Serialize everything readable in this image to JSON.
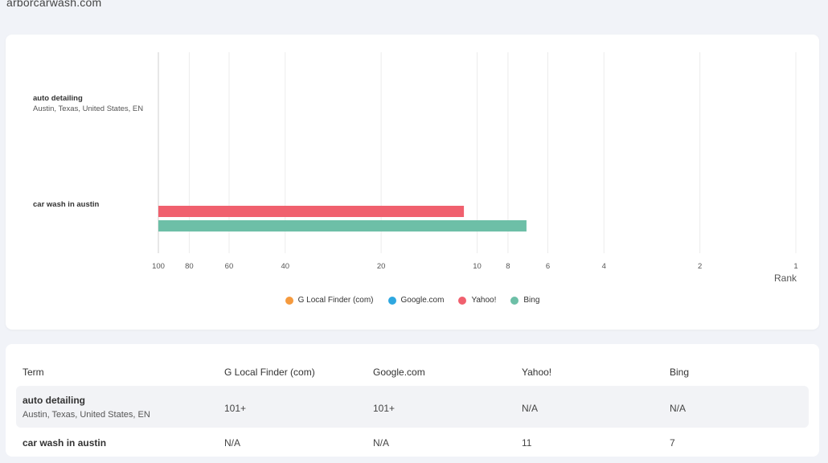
{
  "site": {
    "domain": "arborcarwash.com"
  },
  "chart_data": {
    "type": "bar",
    "orientation": "horizontal",
    "xlabel": "Rank",
    "x_scale": "log",
    "x_reversed": true,
    "xlim": [
      100,
      1
    ],
    "x_ticks": [
      "100",
      "80",
      "60",
      "40",
      "20",
      "10",
      "8",
      "6",
      "4",
      "2",
      "1"
    ],
    "categories": [
      {
        "name": "auto detailing",
        "location": "Austin, Texas, United States, EN"
      },
      {
        "name": "car wash in austin",
        "location": ""
      }
    ],
    "series": [
      {
        "name": "G Local Finder (com)",
        "color": "#f59a3e",
        "values": [
          null,
          null
        ]
      },
      {
        "name": "Google.com",
        "color": "#2ea7e0",
        "values": [
          null,
          null
        ]
      },
      {
        "name": "Yahoo!",
        "color": "#f0606e",
        "values": [
          null,
          11
        ]
      },
      {
        "name": "Bing",
        "color": "#6dbfa7",
        "values": [
          null,
          7
        ]
      }
    ],
    "legend_position": "bottom",
    "grid": true
  },
  "table": {
    "headers": [
      "Term",
      "G Local Finder (com)",
      "Google.com",
      "Yahoo!",
      "Bing"
    ],
    "rows": [
      {
        "term": "auto detailing",
        "location": "Austin, Texas, United States, EN",
        "cells": [
          "101+",
          "101+",
          "N/A",
          "N/A"
        ]
      },
      {
        "term": "car wash in austin",
        "location": "",
        "cells": [
          "N/A",
          "N/A",
          "11",
          "7"
        ]
      }
    ]
  }
}
